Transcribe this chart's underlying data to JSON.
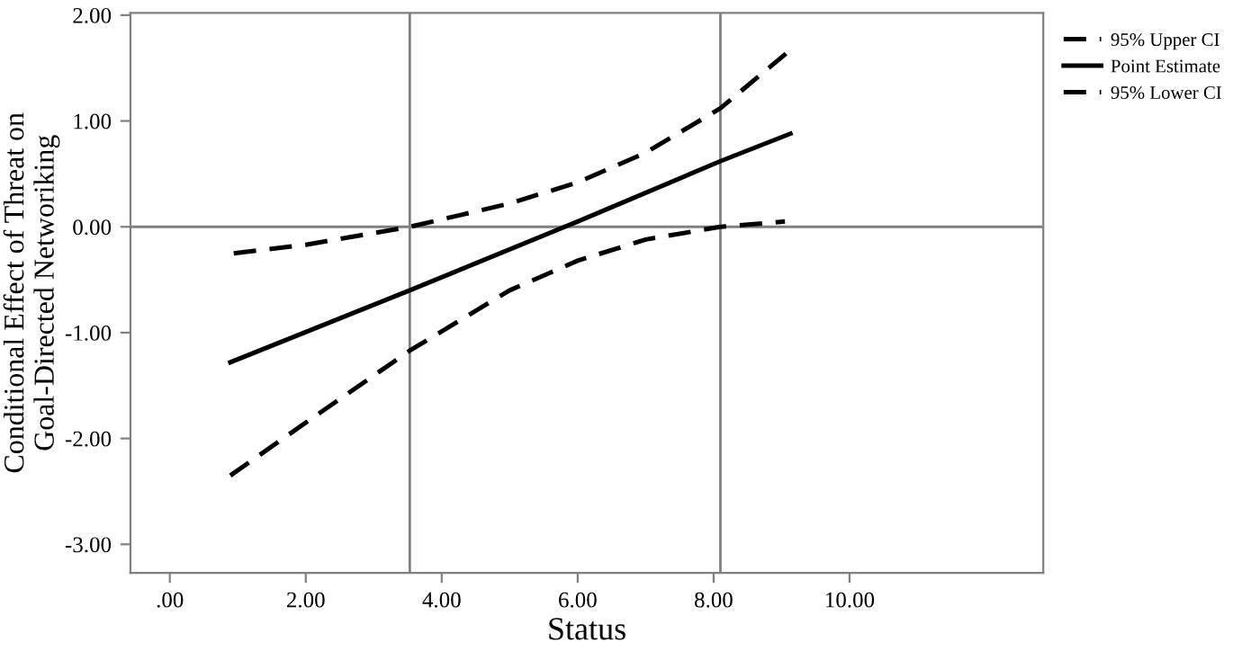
{
  "chart_data": {
    "type": "line",
    "xlabel": "Status",
    "ylabel": "Conditional Effect of Threat on\nGoal-Directed Networiking",
    "series": [
      {
        "name": "95% Upper CI",
        "color": "#000000",
        "line_style": "dashed",
        "x": [
          0.94,
          2,
          3.53,
          5,
          6,
          7,
          8.1,
          9.07
        ],
        "values": [
          -0.25,
          -0.17,
          0.0,
          0.22,
          0.42,
          0.7,
          1.12,
          1.64
        ]
      },
      {
        "name": "Point Estimate",
        "color": "#000000",
        "line_style": "solid",
        "x": [
          0.89,
          3.53,
          6,
          8.1,
          9.13
        ],
        "values": [
          -1.28,
          -0.6,
          0.05,
          0.62,
          0.88
        ]
      },
      {
        "name": "95% Lower CI",
        "color": "#000000",
        "line_style": "dashed",
        "x": [
          0.89,
          2,
          3.53,
          5,
          6,
          7,
          8.1,
          9.05
        ],
        "values": [
          -2.35,
          -1.85,
          -1.17,
          -0.6,
          -0.32,
          -0.12,
          0.0,
          0.05
        ]
      }
    ],
    "xlim": [
      -0.58,
      12.85
    ],
    "ylim": [
      -3.27,
      2.02
    ],
    "xticks": [
      {
        "value": 0,
        "label": ".00"
      },
      {
        "value": 2,
        "label": "2.00"
      },
      {
        "value": 4,
        "label": "4.00"
      },
      {
        "value": 6,
        "label": "6.00"
      },
      {
        "value": 8,
        "label": "8.00"
      },
      {
        "value": 10,
        "label": "10.00"
      }
    ],
    "yticks": [
      {
        "value": -3,
        "label": "-3.00"
      },
      {
        "value": -2,
        "label": "-2.00"
      },
      {
        "value": -1,
        "label": "-1.00"
      },
      {
        "value": 0,
        "label": "0.00"
      },
      {
        "value": 1,
        "label": "1.00"
      },
      {
        "value": 2,
        "label": "2.00"
      }
    ],
    "ref_lines": [
      {
        "axis": "x",
        "value": 3.53,
        "color": "#808080"
      },
      {
        "axis": "x",
        "value": 8.1,
        "color": "#808080"
      },
      {
        "axis": "y",
        "value": 0,
        "color": "#808080"
      }
    ],
    "grid": false,
    "legend": "top right",
    "marker": "none"
  }
}
